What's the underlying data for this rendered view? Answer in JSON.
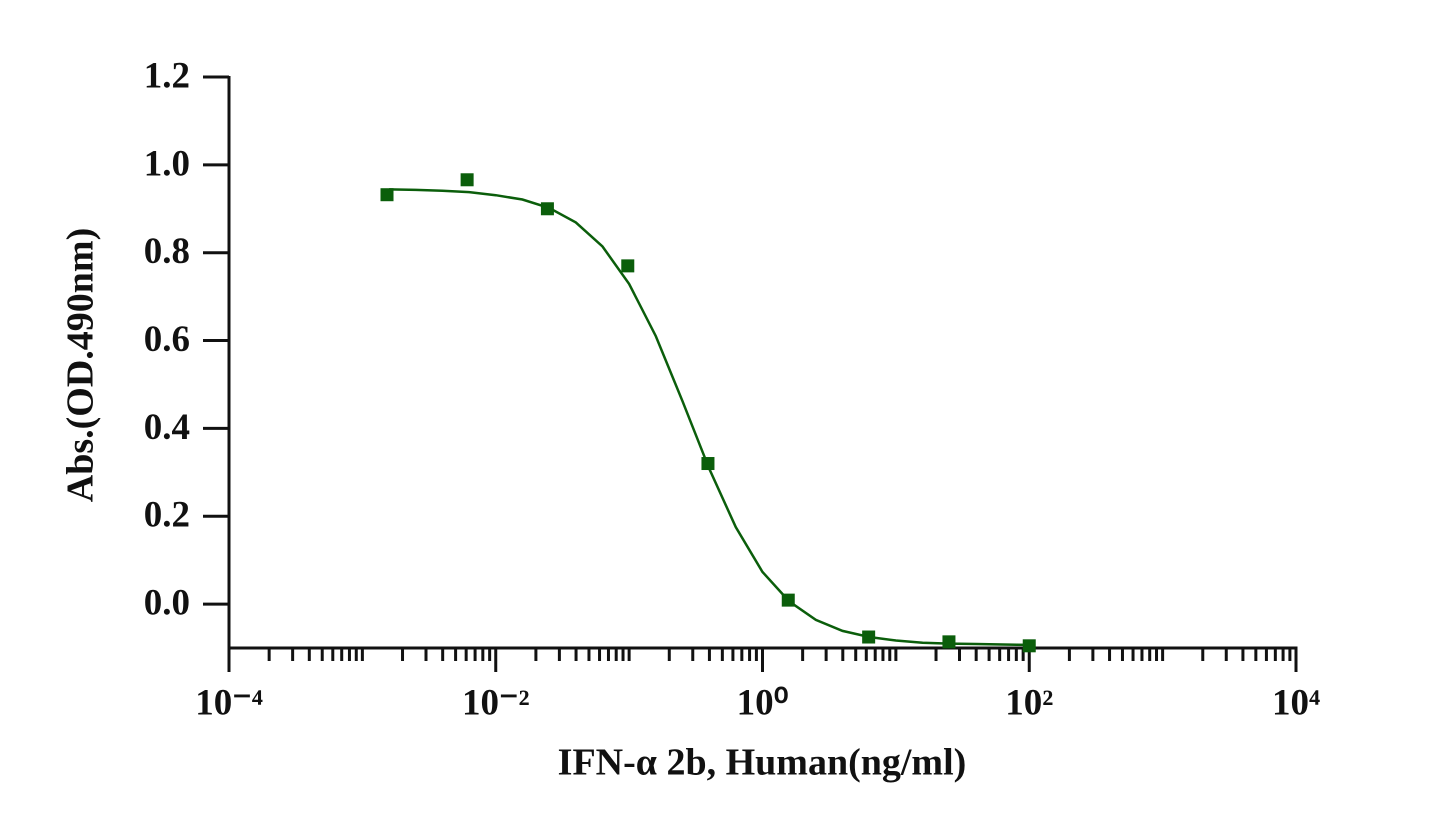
{
  "chart_data": {
    "type": "scatter",
    "x_label": "IFN-α 2b, Human(ng/ml)",
    "y_label": "Abs.(OD.490nm)",
    "x_log": true,
    "xlim": [
      0.0001,
      10000
    ],
    "xticks": [
      {
        "value": 0.0001,
        "label": "10⁻⁴"
      },
      {
        "value": 0.01,
        "label": "10⁻²"
      },
      {
        "value": 1,
        "label": "10⁰"
      },
      {
        "value": 100,
        "label": "10²"
      },
      {
        "value": 10000,
        "label": "10⁴"
      }
    ],
    "xminorticks": [
      0.0002,
      0.0003,
      0.0004,
      0.0005,
      0.0006,
      0.0007,
      0.0008,
      0.0009,
      0.001,
      0.002,
      0.003,
      0.004,
      0.005,
      0.006,
      0.007,
      0.008,
      0.009,
      0.02,
      0.03,
      0.04,
      0.05,
      0.06,
      0.07,
      0.08,
      0.09,
      0.1,
      0.2,
      0.3,
      0.4,
      0.5,
      0.6,
      0.7,
      0.8,
      0.9,
      2,
      3,
      4,
      5,
      6,
      7,
      8,
      9,
      10,
      20,
      30,
      40,
      50,
      60,
      70,
      80,
      90,
      200,
      300,
      400,
      500,
      600,
      700,
      800,
      900,
      1000,
      2000,
      3000,
      4000,
      5000,
      6000,
      7000,
      8000,
      9000
    ],
    "ylim": [
      -0.1,
      1.2
    ],
    "yticks": [
      {
        "value": 0,
        "label": "0.0"
      },
      0.2,
      0.4,
      0.6,
      0.8,
      {
        "value": 1,
        "label": "1.0"
      },
      1.2
    ],
    "color": "#0b5e0b",
    "x": [
      0.00153,
      0.0061,
      0.0244,
      0.0977,
      0.39,
      1.56,
      6.25,
      25,
      100
    ],
    "values": [
      0.932,
      0.966,
      0.9,
      0.77,
      0.32,
      0.009,
      -0.075,
      -0.086,
      -0.095
    ],
    "fit": {
      "x": [
        0.001585,
        0.002512,
        0.003981,
        0.00631,
        0.01,
        0.01585,
        0.02512,
        0.03981,
        0.0631,
        0.1,
        0.1585,
        0.2512,
        0.3981,
        0.631,
        1,
        1.585,
        2.512,
        3.981,
        6.31,
        10,
        15.85,
        25.12,
        39.81,
        63.1,
        100
      ],
      "values": [
        0.944,
        0.943,
        0.941,
        0.938,
        0.931,
        0.921,
        0.902,
        0.869,
        0.814,
        0.729,
        0.61,
        0.462,
        0.309,
        0.175,
        0.073,
        0.006,
        -0.036,
        -0.061,
        -0.075,
        -0.083,
        -0.088,
        -0.09,
        -0.091,
        -0.092,
        -0.093
      ]
    }
  }
}
